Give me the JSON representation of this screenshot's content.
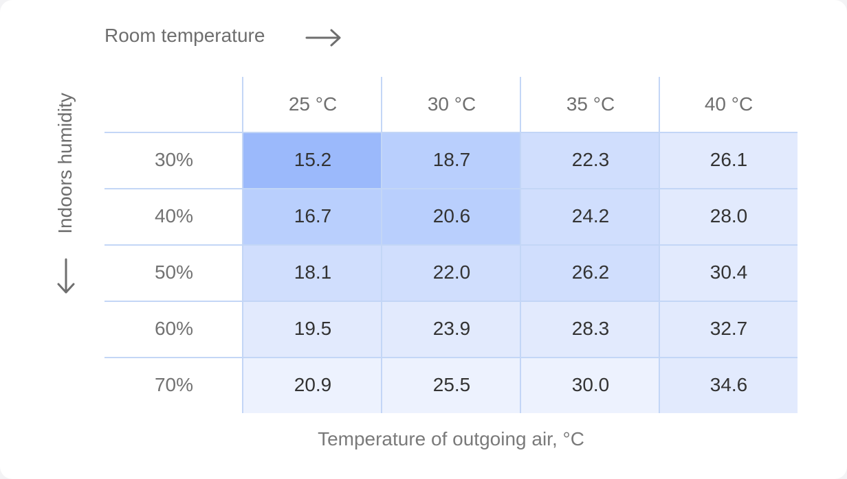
{
  "chart_data": {
    "type": "heatmap",
    "title": "",
    "column_axis_label": "Room temperature",
    "row_axis_label": "Indoors humidity",
    "caption": "Temperature of outgoing air, °C",
    "columns": [
      "25 °C",
      "30 °C",
      "35 °C",
      "40 °C",
      ""
    ],
    "rows": [
      "30%",
      "40%",
      "50%",
      "60%",
      "70%"
    ],
    "values": [
      [
        15.2,
        18.7,
        22.3,
        26.1
      ],
      [
        16.7,
        20.6,
        24.2,
        28.0
      ],
      [
        18.1,
        22.0,
        26.2,
        30.4
      ],
      [
        19.5,
        23.9,
        28.3,
        32.7
      ],
      [
        20.9,
        25.5,
        30.0,
        34.6
      ]
    ],
    "value_labels": [
      [
        "15.2",
        "18.7",
        "22.3",
        "26.1"
      ],
      [
        "16.7",
        "20.6",
        "24.2",
        "28.0"
      ],
      [
        "18.1",
        "22.0",
        "26.2",
        "30.4"
      ],
      [
        "19.5",
        "23.9",
        "28.3",
        "32.7"
      ],
      [
        "20.9",
        "25.5",
        "30.0",
        "34.6"
      ]
    ],
    "colors": {
      "level_1": "#9bb9fb",
      "level_2": "#b9cffd",
      "level_3": "#d0defd",
      "level_4": "#e2eafd",
      "level_5": "#edf2fe",
      "grid_line": "#c3d6f6"
    },
    "cell_levels": [
      [
        1,
        2,
        3,
        4
      ],
      [
        2,
        2,
        3,
        4
      ],
      [
        3,
        3,
        3,
        4
      ],
      [
        4,
        4,
        4,
        4
      ],
      [
        5,
        5,
        5,
        4
      ]
    ]
  }
}
